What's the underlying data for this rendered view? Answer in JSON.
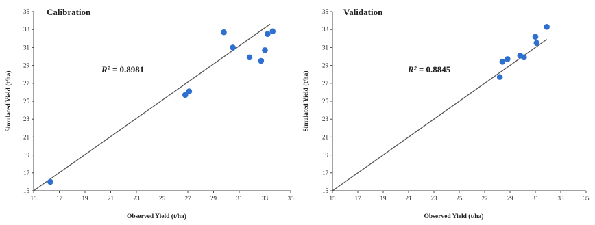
{
  "chart_data": [
    {
      "type": "scatter",
      "title": "Calibration",
      "xlabel": "Observed Yield (t/ha)",
      "ylabel": "Simulated Yield (t/ha)",
      "xlim": [
        15,
        35
      ],
      "ylim": [
        15,
        35
      ],
      "xticks": [
        "15",
        "17",
        "19",
        "21",
        "23",
        "25",
        "27",
        "29",
        "31",
        "33",
        "35"
      ],
      "yticks": [
        "15",
        "17",
        "19",
        "21",
        "23",
        "25",
        "27",
        "29",
        "31",
        "33",
        "35"
      ],
      "annotation_symbol": "R²",
      "annotation_value": " = 0.8981",
      "marker_color": "#2e6fd0",
      "line_color": "#555555",
      "points": [
        {
          "x": 16.3,
          "y": 16.0
        },
        {
          "x": 26.8,
          "y": 25.7
        },
        {
          "x": 27.1,
          "y": 26.1
        },
        {
          "x": 29.8,
          "y": 32.7
        },
        {
          "x": 30.5,
          "y": 31.0
        },
        {
          "x": 31.8,
          "y": 29.9
        },
        {
          "x": 32.7,
          "y": 29.5
        },
        {
          "x": 33.0,
          "y": 30.7
        },
        {
          "x": 33.2,
          "y": 32.5
        },
        {
          "x": 33.6,
          "y": 32.8
        }
      ],
      "trendline": {
        "x": [
          15.0,
          33.4
        ],
        "y": [
          15.0,
          33.6
        ]
      }
    },
    {
      "type": "scatter",
      "title": "Validation",
      "xlabel": "Observed Yield (t/ha)",
      "ylabel": "Simulated Yield (t/ha)",
      "xlim": [
        15,
        35
      ],
      "ylim": [
        15,
        35
      ],
      "xticks": [
        "15",
        "17",
        "19",
        "21",
        "23",
        "25",
        "27",
        "29",
        "31",
        "33",
        "35"
      ],
      "yticks": [
        "15",
        "17",
        "19",
        "21",
        "23",
        "25",
        "27",
        "29",
        "31",
        "33",
        "35"
      ],
      "annotation_symbol": "R²",
      "annotation_value": " = 0.8845",
      "marker_color": "#2e6fd0",
      "line_color": "#555555",
      "points": [
        {
          "x": 28.2,
          "y": 27.7
        },
        {
          "x": 28.4,
          "y": 29.4
        },
        {
          "x": 28.8,
          "y": 29.7
        },
        {
          "x": 29.8,
          "y": 30.1
        },
        {
          "x": 30.1,
          "y": 29.9
        },
        {
          "x": 31.0,
          "y": 32.2
        },
        {
          "x": 31.1,
          "y": 31.5
        },
        {
          "x": 31.9,
          "y": 33.3
        }
      ],
      "trendline": {
        "x": [
          15.0,
          31.9
        ],
        "y": [
          15.0,
          31.9
        ]
      }
    }
  ]
}
